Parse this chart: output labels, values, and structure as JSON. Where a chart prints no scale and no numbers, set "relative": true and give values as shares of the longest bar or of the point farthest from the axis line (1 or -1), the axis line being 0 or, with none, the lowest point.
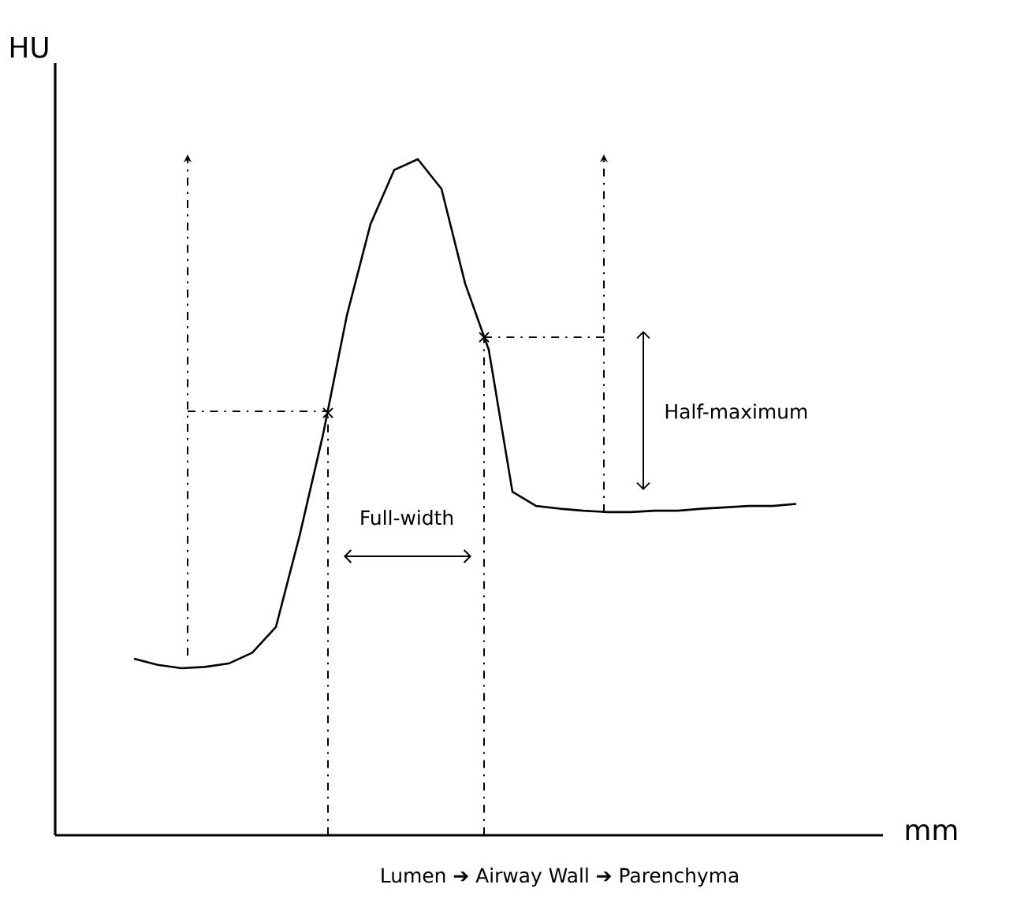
{
  "chart_data": {
    "type": "line",
    "xlabel": "mm",
    "ylabel": "HU",
    "relative": true,
    "categories": [
      null,
      null,
      null,
      null,
      null,
      null,
      null,
      null,
      null,
      null,
      null,
      null,
      null,
      null,
      null,
      null,
      null,
      null,
      null,
      null,
      null,
      null,
      null,
      null,
      null,
      null,
      null,
      null,
      null
    ],
    "series": [
      {
        "color": "#000000",
        "values": [
          0.261,
          0.252,
          0.247,
          0.249,
          0.254,
          0.27,
          0.308,
          0.443,
          0.594,
          0.769,
          0.904,
          0.984,
          1,
          0.956,
          0.816,
          0.718,
          0.508,
          0.487,
          0.483,
          0.48,
          0.478,
          0.478,
          0.48,
          0.48,
          0.483,
          0.485,
          0.487,
          0.487,
          0.49
        ]
      }
    ],
    "annotations": [
      "Full-width",
      "Half-maximum",
      "Lumen ➔ Airway Wall ➔ Parenchyma"
    ]
  }
}
